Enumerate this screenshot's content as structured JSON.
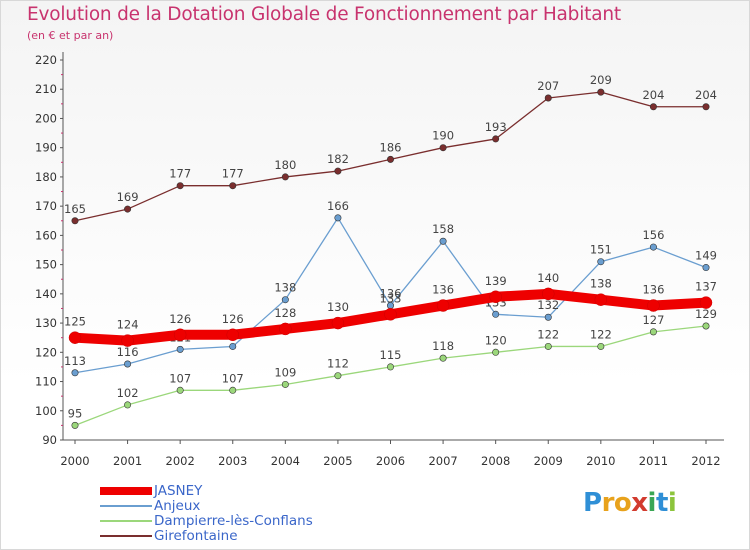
{
  "header": {
    "title": "Evolution de la Dotation Globale de Fonctionnement par Habitant",
    "subtitle": "(en € et par an)"
  },
  "logo": {
    "text": "Proxiti",
    "letters": [
      "P",
      "r",
      "o",
      "x",
      "i",
      "t",
      "i"
    ],
    "colors": [
      "#2f8fd6",
      "#e8a21c",
      "#e8a21c",
      "#d23b2e",
      "#3aa655",
      "#2f8fd6",
      "#8cc43c"
    ]
  },
  "chart_data": {
    "type": "line",
    "title": "Evolution de la Dotation Globale de Fonctionnement par Habitant",
    "subtitle": "(en € et par an)",
    "xlabel": "",
    "ylabel": "",
    "categories": [
      "2000",
      "2001",
      "2002",
      "2003",
      "2004",
      "2005",
      "2006",
      "2007",
      "2008",
      "2009",
      "2010",
      "2011",
      "2012"
    ],
    "ylim": [
      90,
      220
    ],
    "yticks": [
      90,
      100,
      110,
      120,
      130,
      140,
      150,
      160,
      170,
      180,
      190,
      200,
      210,
      220
    ],
    "grid": false,
    "legend_position": "bottom-left",
    "series": [
      {
        "name": "Girefontaine",
        "color": "#7a2e2e",
        "values": [
          165,
          169,
          177,
          177,
          180,
          182,
          186,
          190,
          193,
          207,
          209,
          204,
          204
        ]
      },
      {
        "name": "Anjeux",
        "color": "#6a9ed0",
        "values": [
          113,
          116,
          121,
          122,
          138,
          166,
          136,
          158,
          133,
          132,
          151,
          156,
          149
        ]
      },
      {
        "name": "Dampierre-lès-Conflans",
        "color": "#9bd77b",
        "values": [
          95,
          102,
          107,
          107,
          109,
          112,
          115,
          118,
          120,
          122,
          122,
          127,
          129
        ]
      },
      {
        "name": "JASNEY",
        "color": "#ee0000",
        "values": [
          125,
          124,
          126,
          126,
          128,
          130,
          133,
          136,
          139,
          140,
          138,
          136,
          137
        ]
      }
    ],
    "legend": [
      {
        "name": "JASNEY",
        "color": "#ee0000"
      },
      {
        "name": "Anjeux",
        "color": "#6a9ed0"
      },
      {
        "name": "Dampierre-lès-Conflans",
        "color": "#9bd77b"
      },
      {
        "name": "Girefontaine",
        "color": "#7a2e2e"
      }
    ]
  }
}
